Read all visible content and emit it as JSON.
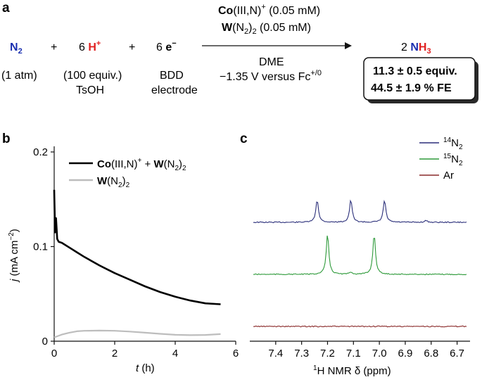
{
  "panel_a": {
    "label": "a",
    "species": [
      {
        "prefix": "",
        "main": "N",
        "sub": "2",
        "sup": "",
        "color": "#1a2fb0",
        "note1": "(1 atm)",
        "note2": ""
      },
      {
        "prefix": "6 ",
        "main": "H",
        "sub": "",
        "sup": "+",
        "color": "#e02020",
        "note1": "(100 equiv.)",
        "note2": "TsOH"
      },
      {
        "prefix": "6 ",
        "main": "e",
        "sub": "",
        "sup": "−",
        "color": "#111111",
        "note1": "BDD",
        "note2": "electrode"
      }
    ],
    "plus": "+",
    "arrow_above": {
      "line1_bold": "Co",
      "line1_rest": "(III,N)",
      "line1_sup": "+",
      "line1_tail": " (0.05 mM)",
      "line2_bold": "W",
      "line2_rest": "(N",
      "line2_sub": "2",
      "line2_tail": ")",
      "line2_sub2": "2",
      "line2_end": " (0.05 mM)"
    },
    "arrow_below": {
      "line1": "DME",
      "line2": "−1.35 V versus Fc",
      "line2_sup": "+/0"
    },
    "product": {
      "coef": "2 ",
      "main": "NH",
      "sub": "3",
      "color_n": "#1a2fb0",
      "color_h": "#e02020"
    },
    "result": {
      "line1": "11.3 ± 0.5 equiv.",
      "line2": "44.5 ± 1.9 % FE"
    }
  },
  "chart_data": [
    {
      "panel": "b",
      "type": "line",
      "xlabel_italic": "t",
      "xlabel_rest": " (h)",
      "ylabel_italic": "j",
      "ylabel_rest": " (mA cm",
      "ylabel_sup": "−2",
      "ylabel_end": ")",
      "xlim": [
        0,
        6
      ],
      "ylim": [
        0,
        0.2
      ],
      "xticks": [
        0,
        2,
        4,
        6
      ],
      "yticks": [
        0,
        0.1,
        0.2
      ],
      "xtick_labels": [
        "0",
        "2",
        "4",
        "6"
      ],
      "ytick_labels": [
        "0",
        "0.1",
        "0.2"
      ],
      "legend_placement": "top-right",
      "series": [
        {
          "name_bold1": "Co",
          "name_rest1": "(III,N)",
          "name_sup": "+",
          "name_mid": " + ",
          "name_bold2": "W",
          "name_rest2": "(N",
          "name_sub": "2",
          "name_end": ")",
          "name_sub2": "2",
          "color": "#000000",
          "x": [
            0,
            0.03,
            0.06,
            0.1,
            0.15,
            0.25,
            0.5,
            0.75,
            1.0,
            1.5,
            2.0,
            2.5,
            3.0,
            3.5,
            4.0,
            4.5,
            5.0,
            5.5
          ],
          "y": [
            0.16,
            0.115,
            0.13,
            0.108,
            0.105,
            0.104,
            0.099,
            0.094,
            0.089,
            0.08,
            0.072,
            0.065,
            0.058,
            0.052,
            0.047,
            0.043,
            0.04,
            0.039
          ]
        },
        {
          "name_bold1": "W",
          "name_rest1": "(N",
          "name_sub": "2",
          "name_end": ")",
          "name_sub2": "2",
          "color": "#bdbdbd",
          "x": [
            0,
            0.25,
            0.5,
            0.75,
            1.0,
            1.5,
            2.0,
            2.5,
            3.0,
            3.5,
            4.0,
            4.5,
            5.0,
            5.5
          ],
          "y": [
            0.004,
            0.007,
            0.009,
            0.0105,
            0.011,
            0.0112,
            0.011,
            0.0102,
            0.009,
            0.0078,
            0.0068,
            0.0064,
            0.0066,
            0.0075
          ]
        }
      ]
    },
    {
      "panel": "c",
      "type": "line",
      "xlabel_sup": "1",
      "xlabel_rest": "H NMR δ (ppm)",
      "xlim": [
        7.5,
        6.65
      ],
      "xticks": [
        7.4,
        7.3,
        7.2,
        7.1,
        7.0,
        6.9,
        6.8,
        6.7
      ],
      "xtick_labels": [
        "7.4",
        "7.3",
        "7.2",
        "7.1",
        "7.0",
        "6.9",
        "6.8",
        "6.7"
      ],
      "legend_placement": "top-right",
      "series": [
        {
          "name_sup": "14",
          "name_main": "N",
          "name_sub": "2",
          "color": "#2b2f7a",
          "peaks": [
            {
              "x": 7.24,
              "h": 1.0
            },
            {
              "x": 7.11,
              "h": 1.0
            },
            {
              "x": 6.98,
              "h": 0.98
            },
            {
              "x": 6.82,
              "h": 0.08
            }
          ]
        },
        {
          "name_sup": "15",
          "name_main": "N",
          "name_sub": "2",
          "color": "#2e9a3a",
          "peaks": [
            {
              "x": 7.2,
              "h": 1.78
            },
            {
              "x": 7.02,
              "h": 1.78
            },
            {
              "x": 7.11,
              "h": 0.1
            }
          ]
        },
        {
          "name_main": "Ar",
          "color": "#8a2a2a",
          "peaks": []
        }
      ]
    }
  ]
}
